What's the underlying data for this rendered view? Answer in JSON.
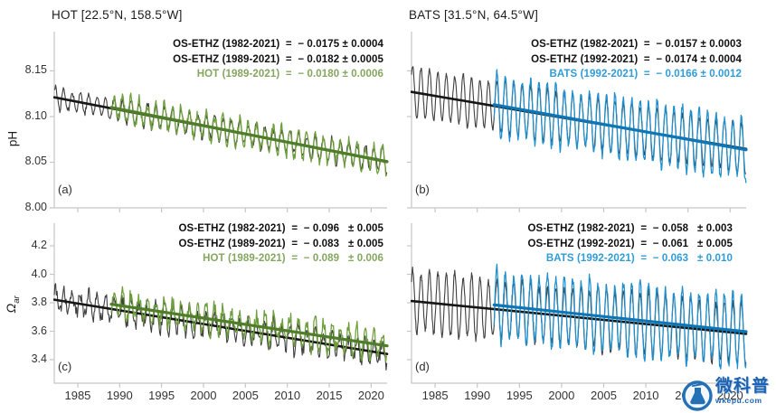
{
  "figure": {
    "ylabel_top": "pH",
    "ylabel_bottom_main": "Ω",
    "ylabel_bottom_sub": "ar"
  },
  "watermark": {
    "name": "微科普",
    "site": "wkepu.com"
  },
  "colors": {
    "axis": "#c6c6c6",
    "tick_text": "#333333",
    "series": {
      "black": {
        "line": "#3f3f3f",
        "trend": "#161616",
        "text": "#101010"
      },
      "green": {
        "line": "#6d9e3b",
        "trend": "#4e7f28",
        "text": "#84a65f"
      },
      "blue": {
        "line": "#1f8fcd",
        "trend": "#0f76b6",
        "text": "#2f9cd8"
      }
    }
  },
  "chart_data": [
    {
      "id": "a",
      "type": "line",
      "title": "HOT [22.5°N, 158.5°W]",
      "panel_label": "(a)",
      "ylabel": "pH",
      "xlim": [
        1982.2,
        2021.9
      ],
      "ylim": [
        8.0,
        8.193
      ],
      "x": {
        "ticks": [
          1985,
          1990,
          1995,
          2000,
          2005,
          2010,
          2015,
          2020
        ],
        "labels": [
          "1985",
          "1990",
          "1995",
          "2000",
          "2005",
          "2010",
          "2015",
          "2020"
        ],
        "show_labels": false
      },
      "y": {
        "ticks": [
          8.15,
          8.1,
          8.05,
          8.0
        ],
        "labels": [
          "8.15",
          "8.10",
          "8.05",
          "8.00"
        ],
        "show_labels": true
      },
      "legend": [
        {
          "text": "OS-ETHZ (1982-2021)  =  − 0.0175 ± 0.0004",
          "color_key": "black"
        },
        {
          "text": "OS-ETHZ (1989-2021)  =  − 0.0182 ± 0.0005",
          "color_key": "black"
        },
        {
          "text": "HOT (1989-2021)  =  − 0.0180 ± 0.0006",
          "color_key": "green"
        }
      ],
      "series": [
        {
          "name": "OS-ETHZ",
          "color_key": "black",
          "start": 1982.2,
          "end": 2021.9,
          "samples_per_year": 12,
          "trend": [
            8.121,
            8.051
          ],
          "seasonal_amplitude": 0.0125,
          "amplitude_variation": 0.4,
          "noise": 0.0035
        },
        {
          "name": "HOT",
          "color_key": "green",
          "start": 1989.0,
          "end": 2021.9,
          "samples_per_year": 12,
          "trend": [
            8.11,
            8.0505
          ],
          "seasonal_amplitude": 0.013,
          "amplitude_variation": 0.55,
          "noise": 0.006
        }
      ]
    },
    {
      "id": "b",
      "type": "line",
      "title": "BATS [31.5°N, 64.5°W]",
      "panel_label": "(b)",
      "ylabel": "pH",
      "xlim": [
        1982.2,
        2021.9
      ],
      "ylim": [
        8.0,
        8.193
      ],
      "x": {
        "ticks": [
          1985,
          1990,
          1995,
          2000,
          2005,
          2010,
          2015,
          2020
        ],
        "labels": [
          "1985",
          "1990",
          "1995",
          "2000",
          "2005",
          "2010",
          "2015",
          "2020"
        ],
        "show_labels": false
      },
      "y": {
        "ticks": [
          8.15,
          8.1,
          8.05,
          8.0
        ],
        "labels": [
          "8.15",
          "8.10",
          "8.05",
          "8.00"
        ],
        "show_labels": false
      },
      "legend": [
        {
          "text": "OS-ETHZ (1982-2021)  =  − 0.0157 ± 0.0003",
          "color_key": "black"
        },
        {
          "text": "OS-ETHZ (1992-2021)  =  − 0.0174 ± 0.0004",
          "color_key": "black"
        },
        {
          "text": "BATS (1992-2021)  =  − 0.0166 ± 0.0012",
          "color_key": "blue"
        }
      ],
      "series": [
        {
          "name": "OS-ETHZ",
          "color_key": "black",
          "start": 1982.2,
          "end": 2021.9,
          "samples_per_year": 24,
          "trend": [
            8.127,
            8.0645
          ],
          "seasonal_amplitude": 0.027,
          "amplitude_variation": 0.18,
          "noise": 0.0018
        },
        {
          "name": "BATS",
          "color_key": "blue",
          "start": 1992.0,
          "end": 2021.9,
          "samples_per_year": 24,
          "trend": [
            8.113,
            8.0635
          ],
          "seasonal_amplitude": 0.0315,
          "amplitude_variation": 0.3,
          "noise": 0.004
        }
      ]
    },
    {
      "id": "c",
      "type": "line",
      "title": "",
      "panel_label": "(c)",
      "ylabel": "Ω_ar",
      "xlim": [
        1982.2,
        2021.9
      ],
      "ylim": [
        3.235,
        4.359
      ],
      "x": {
        "ticks": [
          1985,
          1990,
          1995,
          2000,
          2005,
          2010,
          2015,
          2020
        ],
        "labels": [
          "1985",
          "1990",
          "1995",
          "2000",
          "2005",
          "2010",
          "2015",
          "2020"
        ],
        "show_labels": true
      },
      "y": {
        "ticks": [
          4.2,
          4.0,
          3.8,
          3.6,
          3.4
        ],
        "labels": [
          "4.2",
          "4.0",
          "3.8",
          "3.6",
          "3.4"
        ],
        "show_labels": true
      },
      "legend": [
        {
          "text": "OS-ETHZ (1982-2021)  =  − 0.096   ± 0.005",
          "color_key": "black"
        },
        {
          "text": "OS-ETHZ (1989-2021)  =  − 0.083   ± 0.005",
          "color_key": "black"
        },
        {
          "text": "HOT (1989-2021)  =  − 0.089   ± 0.006",
          "color_key": "green"
        }
      ],
      "series": [
        {
          "name": "OS-ETHZ",
          "color_key": "black",
          "start": 1982.2,
          "end": 2021.9,
          "samples_per_year": 12,
          "trend": [
            3.822,
            3.44
          ],
          "seasonal_amplitude": 0.08,
          "amplitude_variation": 0.5,
          "noise": 0.045
        },
        {
          "name": "HOT",
          "color_key": "green",
          "start": 1989.0,
          "end": 2021.9,
          "samples_per_year": 12,
          "trend": [
            3.79,
            3.497
          ],
          "seasonal_amplitude": 0.085,
          "amplitude_variation": 0.5,
          "noise": 0.05
        }
      ]
    },
    {
      "id": "d",
      "type": "line",
      "title": "",
      "panel_label": "(d)",
      "ylabel": "Ω_ar",
      "xlim": [
        1982.2,
        2021.9
      ],
      "ylim": [
        3.235,
        4.359
      ],
      "x": {
        "ticks": [
          1985,
          1990,
          1995,
          2000,
          2005,
          2010,
          2015,
          2020
        ],
        "labels": [
          "1985",
          "1990",
          "1995",
          "2000",
          "2005",
          "2010",
          "2015",
          "2020"
        ],
        "show_labels": true
      },
      "y": {
        "ticks": [
          4.2,
          4.0,
          3.8,
          3.6,
          3.4
        ],
        "labels": [
          "4.2",
          "4.0",
          "3.8",
          "3.6",
          "3.4"
        ],
        "show_labels": false
      },
      "legend": [
        {
          "text": "OS-ETHZ (1982-2021)  =  − 0.058   ± 0.003",
          "color_key": "black"
        },
        {
          "text": "OS-ETHZ (1992-2021)  =  − 0.061   ± 0.005",
          "color_key": "black"
        },
        {
          "text": "BATS (1992-2021)  =  − 0.063   ± 0.010",
          "color_key": "blue"
        }
      ],
      "series": [
        {
          "name": "OS-ETHZ",
          "color_key": "black",
          "start": 1982.2,
          "end": 2021.9,
          "samples_per_year": 24,
          "trend": [
            3.812,
            3.582
          ],
          "seasonal_amplitude": 0.21,
          "amplitude_variation": 0.25,
          "noise": 0.02
        },
        {
          "name": "BATS",
          "color_key": "blue",
          "start": 1992.0,
          "end": 2021.9,
          "samples_per_year": 24,
          "trend": [
            3.785,
            3.597
          ],
          "seasonal_amplitude": 0.24,
          "amplitude_variation": 0.3,
          "noise": 0.03
        }
      ]
    }
  ]
}
